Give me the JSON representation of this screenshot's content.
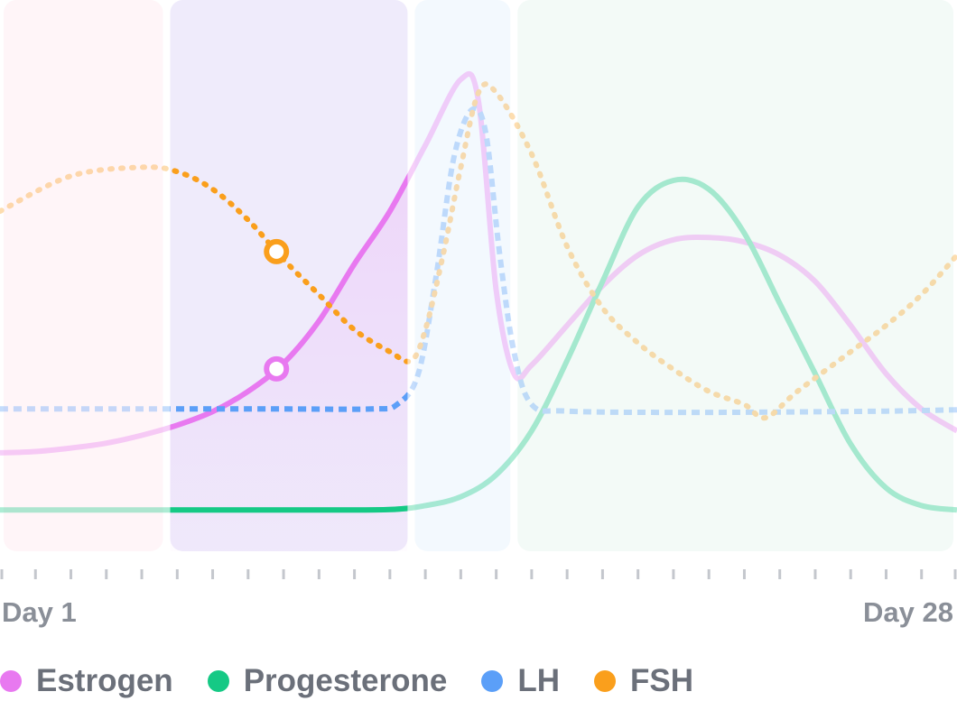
{
  "chart_data": {
    "type": "line",
    "x_domain": [
      1,
      28
    ],
    "y_domain": [
      0,
      100
    ],
    "x_start_label": "Day 1",
    "x_end_label": "Day 28",
    "current_day": 8.8,
    "phases": [
      {
        "start": 1,
        "end": 5.7,
        "color": "#fff5f8"
      },
      {
        "start": 5.7,
        "end": 12.6,
        "color": "#efebfb"
      },
      {
        "start": 12.6,
        "end": 15.5,
        "color": "#f3f9fe"
      },
      {
        "start": 15.5,
        "end": 28,
        "color": "#f3faf7"
      }
    ],
    "highlight_range": [
      5.7,
      12.6
    ],
    "series": [
      {
        "name": "Estrogen",
        "color": "#e879f0",
        "style": "solid",
        "points": [
          [
            1,
            15
          ],
          [
            2,
            15.3
          ],
          [
            3,
            16.1
          ],
          [
            4,
            17.2
          ],
          [
            5,
            19
          ],
          [
            6,
            21.3
          ],
          [
            7,
            24.4
          ],
          [
            8,
            29
          ],
          [
            9,
            35.4
          ],
          [
            10,
            45
          ],
          [
            11,
            58
          ],
          [
            12,
            70
          ],
          [
            13,
            85
          ],
          [
            14,
            100
          ],
          [
            14.5,
            95
          ],
          [
            15,
            52
          ],
          [
            15.5,
            33
          ],
          [
            16,
            35
          ],
          [
            17,
            44
          ],
          [
            18,
            53
          ],
          [
            19,
            60
          ],
          [
            20,
            63.5
          ],
          [
            21,
            64
          ],
          [
            22,
            63
          ],
          [
            23,
            60
          ],
          [
            24,
            54
          ],
          [
            25,
            44
          ],
          [
            26,
            33
          ],
          [
            27,
            25
          ],
          [
            28,
            20
          ]
        ]
      },
      {
        "name": "Progesterone",
        "color": "#15c985",
        "style": "solid",
        "points": [
          [
            1,
            2
          ],
          [
            5,
            2
          ],
          [
            10,
            2
          ],
          [
            12,
            2.1
          ],
          [
            13,
            3
          ],
          [
            14,
            5
          ],
          [
            15,
            10
          ],
          [
            16,
            20
          ],
          [
            17,
            36
          ],
          [
            18,
            54
          ],
          [
            19,
            71
          ],
          [
            20,
            77
          ],
          [
            21,
            75
          ],
          [
            22,
            65
          ],
          [
            23,
            49
          ],
          [
            24,
            33
          ],
          [
            25,
            17
          ],
          [
            26,
            7
          ],
          [
            27,
            3
          ],
          [
            28,
            2
          ]
        ]
      },
      {
        "name": "LH",
        "color": "#5b9ff8",
        "style": "dashed",
        "points": [
          [
            1,
            25
          ],
          [
            5,
            25
          ],
          [
            9,
            25
          ],
          [
            11.5,
            25
          ],
          [
            12.2,
            26
          ],
          [
            12.8,
            33
          ],
          [
            13.3,
            55
          ],
          [
            13.8,
            82
          ],
          [
            14.3,
            93
          ],
          [
            14.7,
            88
          ],
          [
            15.1,
            60
          ],
          [
            15.5,
            38
          ],
          [
            16,
            26
          ],
          [
            17,
            24.5
          ],
          [
            20,
            24.2
          ],
          [
            23,
            24.3
          ],
          [
            26,
            24.5
          ],
          [
            28,
            24.8
          ]
        ]
      },
      {
        "name": "FSH",
        "color": "#fa9f1c",
        "style": "dotted",
        "points": [
          [
            1,
            70
          ],
          [
            3,
            78
          ],
          [
            5,
            80
          ],
          [
            6,
            79
          ],
          [
            7,
            75
          ],
          [
            8,
            68
          ],
          [
            9,
            59
          ],
          [
            10,
            51
          ],
          [
            11,
            43
          ],
          [
            12,
            38
          ],
          [
            12.6,
            36
          ],
          [
            13,
            43
          ],
          [
            13.5,
            60
          ],
          [
            14,
            80
          ],
          [
            14.5,
            97
          ],
          [
            15,
            97
          ],
          [
            16,
            83
          ],
          [
            17,
            62
          ],
          [
            18,
            48
          ],
          [
            19,
            40
          ],
          [
            20,
            34
          ],
          [
            21,
            29
          ],
          [
            22,
            26
          ],
          [
            22.6,
            23
          ],
          [
            23.5,
            29
          ],
          [
            25,
            38
          ],
          [
            26,
            44
          ],
          [
            27,
            51
          ],
          [
            28,
            60
          ]
        ]
      }
    ],
    "markers": [
      {
        "series": "FSH",
        "x": 8.8
      },
      {
        "series": "Estrogen",
        "x": 8.8
      }
    ]
  }
}
